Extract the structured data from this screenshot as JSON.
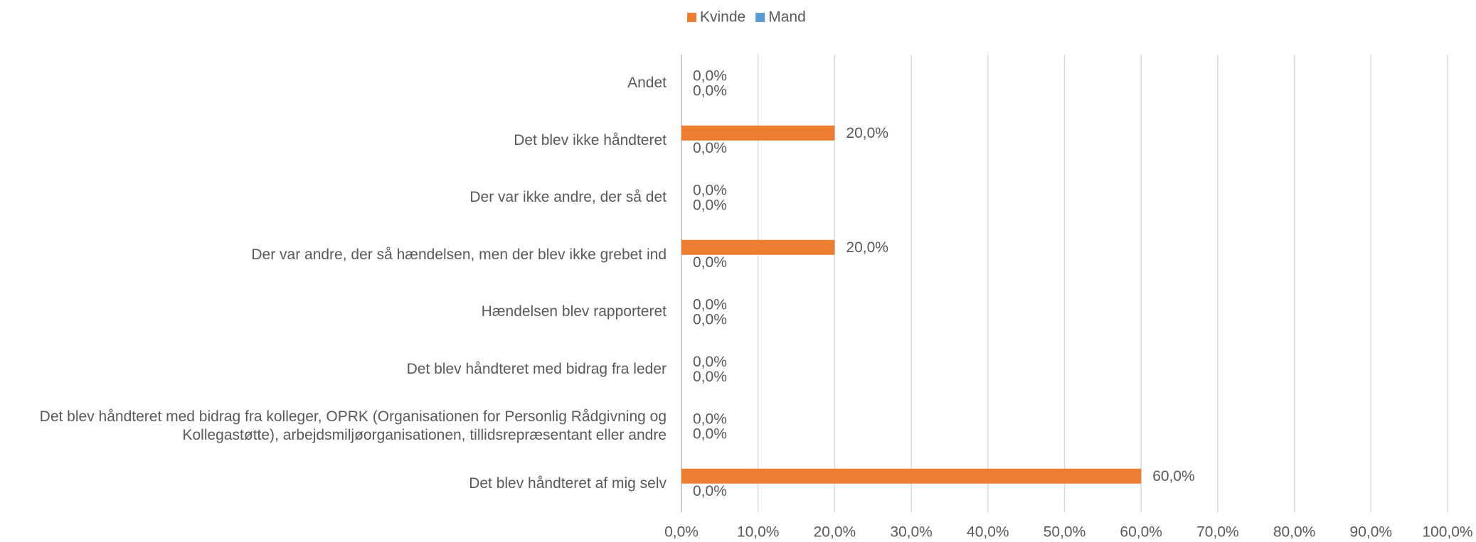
{
  "chart_data": {
    "type": "bar",
    "orientation": "horizontal",
    "categories": [
      "Andet",
      "Det blev ikke håndteret",
      "Der var ikke andre, der så det",
      "Der var andre, der så hændelsen, men der blev ikke grebet ind",
      "Hændelsen blev rapporteret",
      "Det blev håndteret med bidrag fra leder",
      "Det blev håndteret med bidrag fra kolleger, OPRK (Organisationen for Personlig Rådgivning og Kollegastøtte), arbejdsmiljøorganisationen, tillidsrepræsentant eller andre",
      "Det blev håndteret af mig selv"
    ],
    "series": [
      {
        "name": "Kvinde",
        "color": "#ed7d31",
        "values": [
          0,
          20,
          0,
          20,
          0,
          0,
          0,
          60
        ],
        "value_labels": [
          "0,0%",
          "20,0%",
          "0,0%",
          "20,0%",
          "0,0%",
          "0,0%",
          "0,0%",
          "60,0%"
        ]
      },
      {
        "name": "Mand",
        "color": "#5b9bd5",
        "values": [
          0,
          0,
          0,
          0,
          0,
          0,
          0,
          0
        ],
        "value_labels": [
          "0,0%",
          "0,0%",
          "0,0%",
          "0,0%",
          "0,0%",
          "0,0%",
          "0,0%",
          "0,0%"
        ]
      }
    ],
    "xlim": [
      0,
      100
    ],
    "xticks": [
      {
        "value": 0,
        "label": "0,0%"
      },
      {
        "value": 10,
        "label": "10,0%"
      },
      {
        "value": 20,
        "label": "20,0%"
      },
      {
        "value": 30,
        "label": "30,0%"
      },
      {
        "value": 40,
        "label": "40,0%"
      },
      {
        "value": 50,
        "label": "50,0%"
      },
      {
        "value": 60,
        "label": "60,0%"
      },
      {
        "value": 70,
        "label": "70,0%"
      },
      {
        "value": 80,
        "label": "80,0%"
      },
      {
        "value": 90,
        "label": "90,0%"
      },
      {
        "value": 100,
        "label": "100,0%"
      }
    ],
    "grid": true,
    "legend": "top"
  }
}
